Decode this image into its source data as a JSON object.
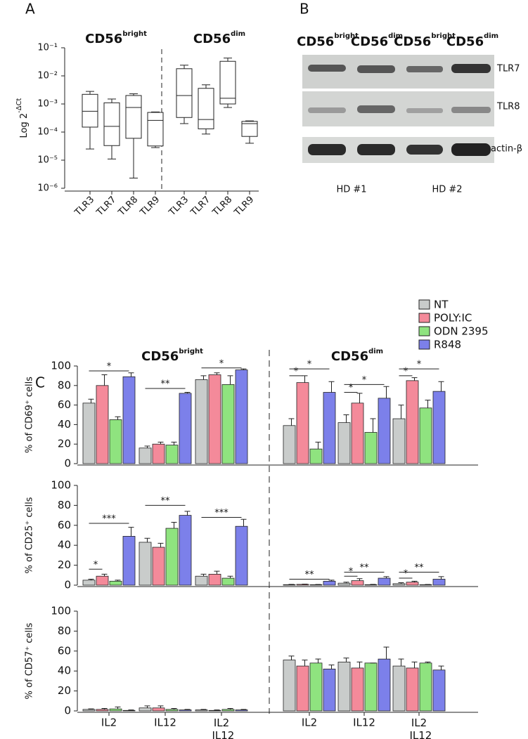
{
  "panel_labels": [
    "A",
    "B",
    "C"
  ],
  "blot": {
    "columns": [
      {
        "name": "CD56",
        "sup": "bright"
      },
      {
        "name": "CD56",
        "sup": "dim"
      },
      {
        "name": "CD56",
        "sup": "bright"
      },
      {
        "name": "CD56",
        "sup": "dim"
      }
    ],
    "rows": [
      "TLR7",
      "TLR8",
      "actin-β"
    ],
    "donors": [
      "HD #1",
      "HD #2"
    ]
  },
  "chart_data": [
    {
      "type": "box",
      "ylabel": "Log 2",
      "ylabel_sup": "-ΔCt",
      "log": true,
      "ylim": [
        1e-06,
        0.1
      ],
      "yticks": [
        {
          "value": 1e-06,
          "label": "10⁻⁶"
        },
        {
          "value": 1e-05,
          "label": "10⁻⁵"
        },
        {
          "value": 0.0001,
          "label": "10⁻⁴"
        },
        {
          "value": 0.001,
          "label": "10⁻³"
        },
        {
          "value": 0.01,
          "label": "10⁻²"
        },
        {
          "value": 0.1,
          "label": "10⁻¹"
        }
      ],
      "groups": [
        {
          "name": "CD56",
          "sup": "bright",
          "categories": [
            "TLR3",
            "TLR7",
            "TLR8",
            "TLR9"
          ],
          "boxes": [
            {
              "min": 2.5e-05,
              "q1": 0.00015,
              "median": 0.00055,
              "q3": 0.0022,
              "max": 0.0028
            },
            {
              "min": 1.1e-05,
              "q1": 3.3e-05,
              "median": 0.00016,
              "q3": 0.0011,
              "max": 0.0015
            },
            {
              "min": 2.3e-06,
              "q1": 6e-05,
              "median": 0.00075,
              "q3": 0.002,
              "max": 0.0023
            },
            {
              "min": 2.8e-05,
              "q1": 3.2e-05,
              "median": 0.00026,
              "q3": 0.0005,
              "max": 0.00052
            }
          ]
        },
        {
          "name": "CD56",
          "sup": "dim",
          "categories": [
            "TLR3",
            "TLR7",
            "TLR8",
            "TLR9"
          ],
          "boxes": [
            {
              "min": 0.0002,
              "q1": 0.00033,
              "median": 0.002,
              "q3": 0.018,
              "max": 0.024
            },
            {
              "min": 8.5e-05,
              "q1": 0.00013,
              "median": 0.00028,
              "q3": 0.0036,
              "max": 0.0048
            },
            {
              "min": 0.00075,
              "q1": 0.001,
              "median": 0.0016,
              "q3": 0.033,
              "max": 0.043
            },
            {
              "min": 4e-05,
              "q1": 7e-05,
              "median": 0.0002,
              "q3": 0.00024,
              "max": 0.00025
            }
          ]
        }
      ]
    },
    {
      "type": "bar",
      "ylabel": "% of CD69⁺ cells",
      "ylim": [
        0,
        100
      ],
      "yticks": [
        0,
        20,
        40,
        60,
        80,
        100
      ],
      "legend": "top-right",
      "groups": [
        {
          "name": "CD56",
          "sup": "bright"
        },
        {
          "name": "CD56",
          "sup": "dim"
        }
      ],
      "series": [
        {
          "name": "NT",
          "color": "#c9cccb",
          "values": [
            62,
            16,
            86,
            39,
            42,
            46
          ],
          "errors": [
            4,
            2,
            4,
            7,
            8,
            14
          ]
        },
        {
          "name": "POLY:IC",
          "color": "#f48a9a",
          "values": [
            80,
            20,
            91,
            83,
            62,
            85
          ],
          "errors": [
            11,
            2,
            2,
            7,
            10,
            3
          ]
        },
        {
          "name": "ODN 2395",
          "color": "#8fe37f",
          "values": [
            45,
            19,
            81,
            15,
            32,
            57
          ],
          "errors": [
            3,
            3,
            9,
            7,
            14,
            8
          ]
        },
        {
          "name": "R848",
          "color": "#7c80ea",
          "values": [
            89,
            72,
            96,
            73,
            67,
            74
          ],
          "errors": [
            4,
            1,
            1,
            11,
            12,
            10
          ]
        }
      ],
      "annotations": [
        {
          "text": "*",
          "category": 0,
          "series": [
            0,
            3
          ],
          "y": 95
        },
        {
          "text": "**",
          "category": 1,
          "series": [
            0,
            3
          ],
          "y": 77
        },
        {
          "text": "*",
          "category": 2,
          "series": [
            0,
            3
          ],
          "y": 98
        },
        {
          "text": "*",
          "category": 3,
          "series": [
            0,
            1
          ],
          "y": 90
        },
        {
          "text": "*",
          "category": 3,
          "series": [
            0,
            3
          ],
          "y": 97
        },
        {
          "text": "*",
          "category": 4,
          "series": [
            0,
            1
          ],
          "y": 73
        },
        {
          "text": "*",
          "category": 4,
          "series": [
            0,
            3
          ],
          "y": 81
        },
        {
          "text": "*",
          "category": 5,
          "series": [
            0,
            1
          ],
          "y": 90
        },
        {
          "text": "*",
          "category": 5,
          "series": [
            0,
            3
          ],
          "y": 97
        }
      ]
    },
    {
      "type": "bar",
      "ylabel": "% of CD25⁺ cells",
      "ylim": [
        0,
        100
      ],
      "yticks": [
        0,
        20,
        40,
        60,
        80,
        100
      ],
      "series": [
        {
          "color": "#c9cccb",
          "values": [
            5,
            43,
            9,
            0.5,
            2,
            1.5
          ],
          "errors": [
            1,
            4,
            2,
            0.3,
            1,
            1
          ]
        },
        {
          "color": "#f48a9a",
          "values": [
            9,
            38,
            11,
            0.8,
            4.5,
            3
          ],
          "errors": [
            2,
            4,
            3,
            0.3,
            2,
            1
          ]
        },
        {
          "color": "#8fe37f",
          "values": [
            4,
            57,
            7,
            0.5,
            0.5,
            0.5
          ],
          "errors": [
            1,
            6,
            2,
            0.2,
            0.3,
            0.2
          ]
        },
        {
          "color": "#7c80ea",
          "values": [
            49,
            70,
            59,
            4,
            7,
            6
          ],
          "errors": [
            9,
            4,
            7,
            1,
            1.5,
            2.5
          ]
        }
      ],
      "annotations": [
        {
          "text": "*",
          "category": 0,
          "series": [
            0,
            1
          ],
          "y": 16
        },
        {
          "text": "***",
          "category": 0,
          "series": [
            0,
            3
          ],
          "y": 62
        },
        {
          "text": "**",
          "category": 1,
          "series": [
            0,
            3
          ],
          "y": 80
        },
        {
          "text": "***",
          "category": 2,
          "series": [
            0,
            3
          ],
          "y": 68
        },
        {
          "text": "**",
          "category": 3,
          "series": [
            0,
            3
          ],
          "y": 6
        },
        {
          "text": "*",
          "category": 4,
          "series": [
            0,
            1
          ],
          "y": 9
        },
        {
          "text": "**",
          "category": 4,
          "series": [
            0,
            3
          ],
          "y": 13
        },
        {
          "text": "*",
          "category": 5,
          "series": [
            0,
            1
          ],
          "y": 7
        },
        {
          "text": "**",
          "category": 5,
          "series": [
            0,
            3
          ],
          "y": 13
        }
      ]
    },
    {
      "type": "bar",
      "ylabel": "% of CD57⁺ cells",
      "ylim": [
        0,
        100
      ],
      "yticks": [
        0,
        20,
        40,
        60,
        80,
        100
      ],
      "categories": [
        "IL2",
        "IL12",
        "IL2 IL12",
        "IL2",
        "IL12",
        "IL2 IL12"
      ],
      "series": [
        {
          "color": "#c9cccb",
          "values": [
            1.5,
            3,
            1,
            51,
            49,
            45
          ],
          "errors": [
            0.5,
            2,
            0.5,
            4,
            4,
            7
          ]
        },
        {
          "color": "#f48a9a",
          "values": [
            1.5,
            3,
            0.5,
            45,
            43,
            43
          ],
          "errors": [
            1,
            2,
            0.5,
            6,
            6,
            6
          ]
        },
        {
          "color": "#8fe37f",
          "values": [
            2,
            1.5,
            1.5,
            48,
            48,
            48
          ],
          "errors": [
            2,
            1,
            1,
            4,
            0,
            1
          ]
        },
        {
          "color": "#7c80ea",
          "values": [
            0.5,
            1,
            1,
            42,
            52,
            41
          ],
          "errors": [
            0.5,
            0.5,
            0.5,
            4,
            12,
            4
          ]
        }
      ]
    }
  ]
}
